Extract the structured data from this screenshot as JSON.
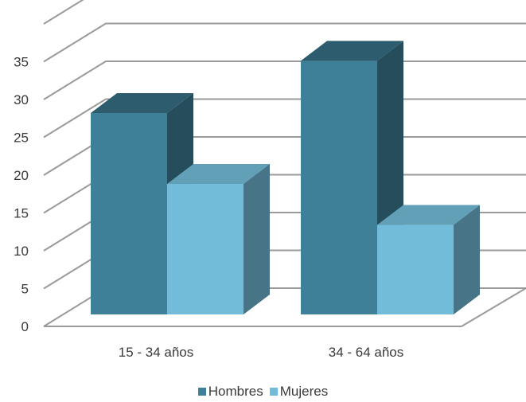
{
  "chart_data": {
    "type": "bar",
    "title": "",
    "xlabel": "",
    "ylabel": "",
    "categories": [
      "15 - 34 años",
      "34 - 64 años"
    ],
    "series": [
      {
        "name": "Hombres",
        "values": [
          27,
          34
        ],
        "color": "#3F8099"
      },
      {
        "name": "Mujeres",
        "values": [
          17.5,
          12
        ],
        "color": "#73BCD9"
      }
    ],
    "ylim": [
      0,
      40
    ],
    "yticks": [
      0,
      5,
      10,
      15,
      20,
      25,
      30,
      35
    ],
    "grid": true,
    "style": "3d",
    "legend": "bottom"
  }
}
